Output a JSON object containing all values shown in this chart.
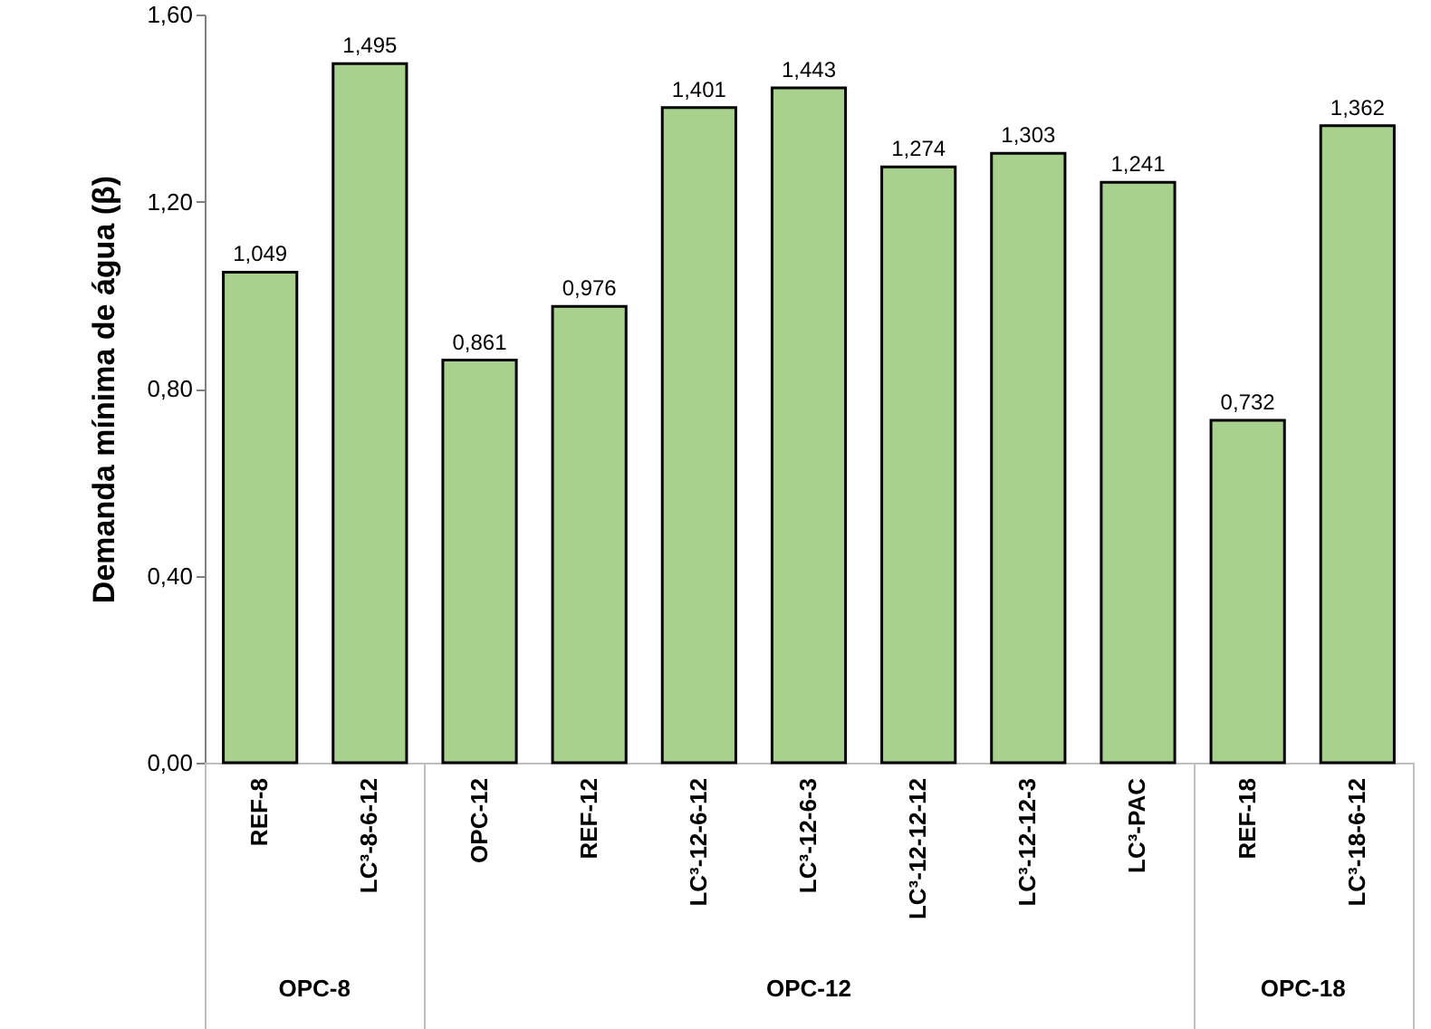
{
  "chart_data": {
    "type": "bar",
    "ylabel": "Demanda mínima de água (β)",
    "categories": [
      "REF-8",
      "LC³-8-6-12",
      "OPC-12",
      "REF-12",
      "LC³-12-6-12",
      "LC³-12-6-3",
      "LC³-12-12-12",
      "LC³-12-12-3",
      "LC³-PAC",
      "REF-18",
      "LC³-18-6-12"
    ],
    "values": [
      1.049,
      1.495,
      0.861,
      0.976,
      1.401,
      1.443,
      1.274,
      1.303,
      1.241,
      0.732,
      1.362
    ],
    "value_labels": [
      "1,049",
      "1,495",
      "0,861",
      "0,976",
      "1,401",
      "1,443",
      "1,274",
      "1,303",
      "1,241",
      "0,732",
      "1,362"
    ],
    "color": "#a9d18e",
    "ylim": [
      0,
      1.6
    ],
    "yticks": [
      {
        "value": 0,
        "label": "0,00"
      },
      {
        "value": 0.4,
        "label": "0,40"
      },
      {
        "value": 0.8,
        "label": "0,80"
      },
      {
        "value": 1.2,
        "label": "1,20"
      },
      {
        "value": 1.6,
        "label": "1,60"
      }
    ],
    "annotations": [
      "OPC-8",
      "OPC-12",
      "OPC-18"
    ],
    "grid": false
  }
}
